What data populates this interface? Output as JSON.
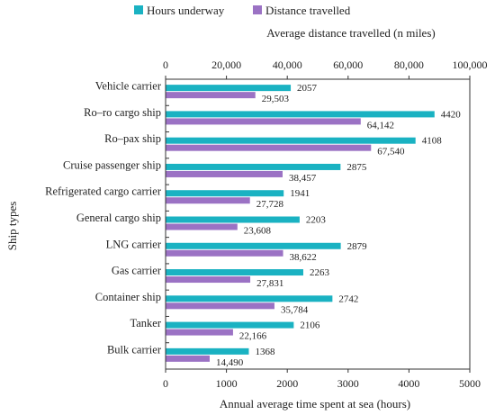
{
  "chart_data": {
    "type": "bar",
    "orientation": "horizontal",
    "categories": [
      "Vehicle carrier",
      "Ro–ro cargo ship",
      "Ro–pax ship",
      "Cruise passenger ship",
      "Refrigerated cargo carrier",
      "General cargo ship",
      "LNG carrier",
      "Gas carrier",
      "Container ship",
      "Tanker",
      "Bulk carrier"
    ],
    "series": [
      {
        "name": "Hours underway",
        "axis": "bottom",
        "color": "#1ab2c2",
        "values": [
          2057,
          4420,
          4108,
          2875,
          1941,
          2203,
          2879,
          2263,
          2742,
          2106,
          1368
        ],
        "labels": [
          "2057",
          "4420",
          "4108",
          "2875",
          "1941",
          "2203",
          "2879",
          "2263",
          "2742",
          "2106",
          "1368"
        ]
      },
      {
        "name": "Distance travelled",
        "axis": "top",
        "color": "#9b72c4",
        "values": [
          29503,
          64142,
          67540,
          38457,
          27728,
          23608,
          38622,
          27831,
          35784,
          22166,
          14490
        ],
        "labels": [
          "29,503",
          "64,142",
          "67,540",
          "38,457",
          "27,728",
          "23,608",
          "38,622",
          "27,831",
          "35,784",
          "22,166",
          "14,490"
        ]
      }
    ],
    "xlabel": "Annual average time spent at sea (hours)",
    "x2label": "Average distance travelled (n miles)",
    "ylabel": "Ship types",
    "xlim": [
      0,
      5000
    ],
    "x2lim": [
      0,
      100000
    ],
    "xticks": [
      "0",
      "1000",
      "2000",
      "3000",
      "4000",
      "5000"
    ],
    "x2ticks": [
      "0",
      "20,000",
      "40,000",
      "60,000",
      "80,000",
      "100,000"
    ],
    "legend_position": "top",
    "grid": false
  }
}
